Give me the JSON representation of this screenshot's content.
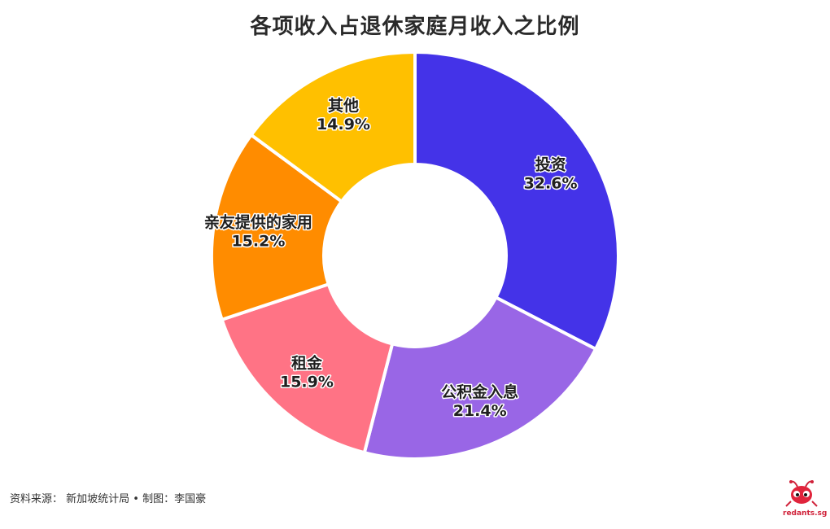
{
  "chart_data": {
    "type": "pie",
    "title": "各项收入占退休家庭月收入之比例",
    "slices": [
      {
        "label": "投资",
        "value": 32.6,
        "display": "32.6%",
        "color": "#4433e8"
      },
      {
        "label": "公积金入息",
        "value": 21.4,
        "display": "21.4%",
        "color": "#9966e6"
      },
      {
        "label": "租金",
        "value": 15.9,
        "display": "15.9%",
        "color": "#ff7385"
      },
      {
        "label": "亲友提供的家用",
        "value": 15.2,
        "display": "15.2%",
        "color": "#ff8c00"
      },
      {
        "label": "其他",
        "value": 14.9,
        "display": "14.9%",
        "color": "#ffc000"
      }
    ]
  },
  "footer": {
    "source": "资料来源： 新加坡统计局 • 制图：李国豪"
  },
  "logo": {
    "text": "redants.sg",
    "icon": "ant-icon"
  }
}
